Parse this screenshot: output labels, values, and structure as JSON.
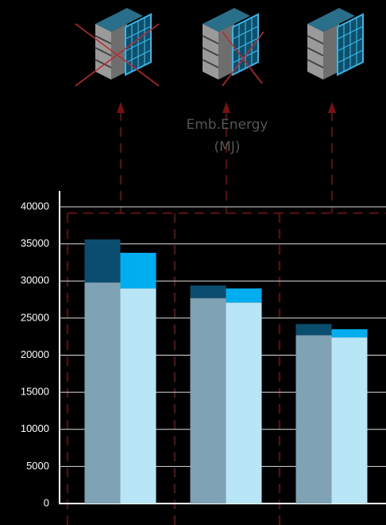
{
  "chart_data": {
    "type": "stacked_bar",
    "title": "Emb.Energy (MJ)",
    "categories": [
      null,
      null,
      null
    ],
    "series": [
      {
        "color": "#7fa3b5",
        "stack": 0,
        "values": [
          29800,
          27700,
          22700
        ]
      },
      {
        "color": "#0b4d6e",
        "stack": 0,
        "values": [
          5800,
          1700,
          1500
        ]
      },
      {
        "color": "#b8e6f7",
        "stack": 1,
        "values": [
          29000,
          27100,
          22400
        ]
      },
      {
        "color": "#00aeef",
        "stack": 1,
        "values": [
          4800,
          1900,
          1100
        ]
      }
    ],
    "ylim": [
      0,
      40000
    ],
    "yticks": [
      0,
      5000,
      10000,
      15000,
      20000,
      25000,
      30000,
      35000,
      40000
    ],
    "grid": true
  }
}
